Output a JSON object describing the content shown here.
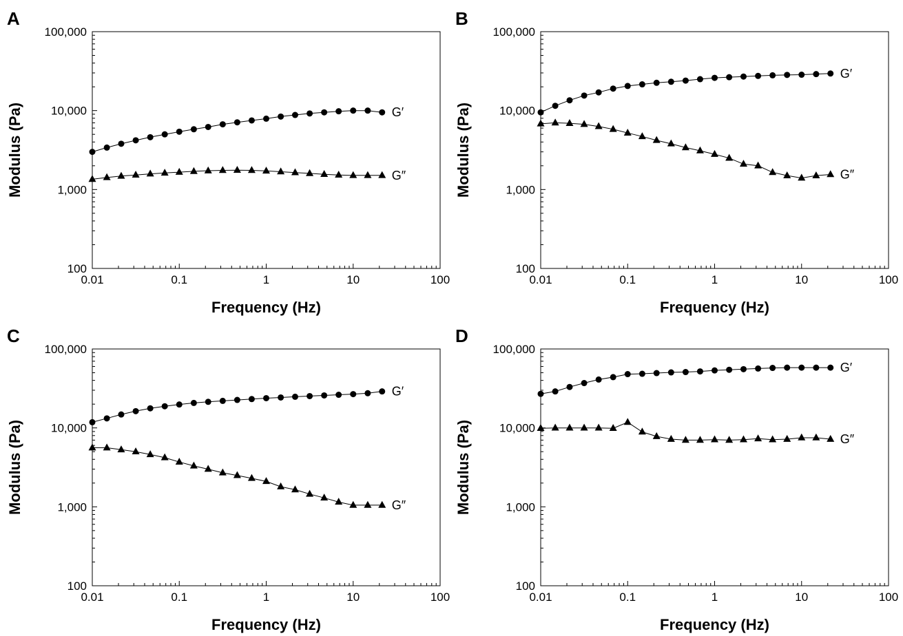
{
  "chart_data": [
    {
      "type": "scatter",
      "panel_label": "A",
      "xlabel": "Frequency (Hz)",
      "ylabel": "Modulus (Pa)",
      "x_scale": "log",
      "y_scale": "log",
      "xlim": [
        0.01,
        100
      ],
      "ylim": [
        100,
        100000
      ],
      "xticks": [
        "0.01",
        "0.1",
        "1",
        "10",
        "100"
      ],
      "yticks": [
        "100",
        "1,000",
        "10,000",
        "100,000"
      ],
      "grid": false,
      "x": [
        0.01,
        0.0147,
        0.0215,
        0.0316,
        0.0464,
        0.0681,
        0.1,
        0.147,
        0.215,
        0.316,
        0.464,
        0.681,
        1,
        1.47,
        2.15,
        3.16,
        4.64,
        6.81,
        10,
        14.7,
        21.5
      ],
      "series": [
        {
          "name": "G′",
          "marker": "circle",
          "values": [
            3000,
            3400,
            3800,
            4200,
            4600,
            5000,
            5400,
            5800,
            6200,
            6700,
            7100,
            7500,
            7900,
            8400,
            8800,
            9200,
            9500,
            9800,
            10000,
            10000,
            9500
          ]
        },
        {
          "name": "G″",
          "marker": "triangle",
          "values": [
            1350,
            1420,
            1480,
            1530,
            1580,
            1620,
            1660,
            1700,
            1730,
            1750,
            1760,
            1750,
            1720,
            1680,
            1640,
            1600,
            1560,
            1530,
            1510,
            1510,
            1510
          ]
        }
      ]
    },
    {
      "type": "scatter",
      "panel_label": "B",
      "xlabel": "Frequency (Hz)",
      "ylabel": "Modulus (Pa)",
      "x_scale": "log",
      "y_scale": "log",
      "xlim": [
        0.01,
        100
      ],
      "ylim": [
        100,
        100000
      ],
      "xticks": [
        "0.01",
        "0.1",
        "1",
        "10",
        "100"
      ],
      "yticks": [
        "100",
        "1,000",
        "10,000",
        "100,000"
      ],
      "grid": false,
      "x": [
        0.01,
        0.0147,
        0.0215,
        0.0316,
        0.0464,
        0.0681,
        0.1,
        0.147,
        0.215,
        0.316,
        0.464,
        0.681,
        1,
        1.47,
        2.15,
        3.16,
        4.64,
        6.81,
        10,
        14.7,
        21.5
      ],
      "series": [
        {
          "name": "G′",
          "marker": "circle",
          "values": [
            9500,
            11500,
            13500,
            15500,
            17000,
            19000,
            20500,
            21500,
            22500,
            23200,
            24000,
            25000,
            26000,
            26500,
            27000,
            27500,
            28000,
            28300,
            28500,
            29000,
            29500
          ]
        },
        {
          "name": "G″",
          "marker": "triangle",
          "values": [
            6800,
            7000,
            6900,
            6700,
            6300,
            5800,
            5200,
            4700,
            4200,
            3800,
            3400,
            3100,
            2800,
            2500,
            2100,
            2000,
            1650,
            1500,
            1400,
            1500,
            1550
          ]
        }
      ]
    },
    {
      "type": "scatter",
      "panel_label": "C",
      "xlabel": "Frequency (Hz)",
      "ylabel": "Modulus (Pa)",
      "x_scale": "log",
      "y_scale": "log",
      "xlim": [
        0.01,
        100
      ],
      "ylim": [
        100,
        100000
      ],
      "xticks": [
        "0.01",
        "0.1",
        "1",
        "10",
        "100"
      ],
      "yticks": [
        "100",
        "1,000",
        "10,000",
        "100,000"
      ],
      "grid": false,
      "x": [
        0.01,
        0.0147,
        0.0215,
        0.0316,
        0.0464,
        0.0681,
        0.1,
        0.147,
        0.215,
        0.316,
        0.464,
        0.681,
        1,
        1.47,
        2.15,
        3.16,
        4.64,
        6.81,
        10,
        14.7,
        21.5
      ],
      "series": [
        {
          "name": "G′",
          "marker": "circle",
          "values": [
            11800,
            13200,
            14800,
            16300,
            17700,
            18800,
            19800,
            20700,
            21400,
            22000,
            22600,
            23200,
            23800,
            24300,
            24800,
            25300,
            25800,
            26300,
            26800,
            27500,
            29000
          ]
        },
        {
          "name": "G″",
          "marker": "triangle",
          "values": [
            5600,
            5600,
            5300,
            5000,
            4600,
            4200,
            3700,
            3300,
            3000,
            2700,
            2500,
            2300,
            2100,
            1800,
            1650,
            1450,
            1300,
            1150,
            1050,
            1050,
            1050
          ]
        }
      ]
    },
    {
      "type": "scatter",
      "panel_label": "D",
      "xlabel": "Frequency (Hz)",
      "ylabel": "Modulus (Pa)",
      "x_scale": "log",
      "y_scale": "log",
      "xlim": [
        0.01,
        100
      ],
      "ylim": [
        100,
        100000
      ],
      "xticks": [
        "0.01",
        "0.1",
        "1",
        "10",
        "100"
      ],
      "yticks": [
        "100",
        "1,000",
        "10,000",
        "100,000"
      ],
      "grid": false,
      "x": [
        0.01,
        0.0147,
        0.0215,
        0.0316,
        0.0464,
        0.0681,
        0.1,
        0.147,
        0.215,
        0.316,
        0.464,
        0.681,
        1,
        1.47,
        2.15,
        3.16,
        4.64,
        6.81,
        10,
        14.7,
        21.5
      ],
      "series": [
        {
          "name": "G′",
          "marker": "circle",
          "values": [
            27000,
            29000,
            33000,
            37000,
            41000,
            44000,
            48000,
            48500,
            49500,
            50500,
            51000,
            52000,
            53500,
            54500,
            55500,
            56500,
            57500,
            58000,
            58000,
            58000,
            58000
          ]
        },
        {
          "name": "G″",
          "marker": "triangle",
          "values": [
            9900,
            10000,
            10000,
            10000,
            10000,
            9900,
            11800,
            8900,
            7800,
            7200,
            7000,
            7000,
            7100,
            7000,
            7100,
            7300,
            7100,
            7200,
            7500,
            7500,
            7200
          ]
        }
      ]
    }
  ]
}
